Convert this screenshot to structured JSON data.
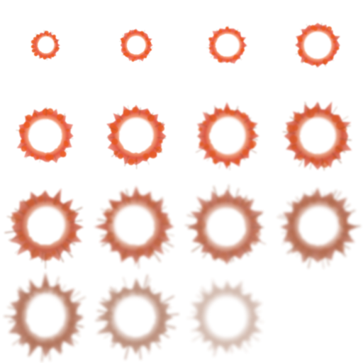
{
  "sprite_sheet": {
    "columns": 4,
    "rows": 4,
    "colors": {
      "fire_core": "#f05a1e",
      "fire_edge": "#e8503a",
      "smoke": "#8a4a2c",
      "background": "#ffffff"
    },
    "frames": [
      {
        "index": 0,
        "ring_outer": 0.28,
        "ring_inner": 0.17,
        "spike": 0.03,
        "fire": 1.0,
        "smoke": 0.0,
        "opacity": 1.0
      },
      {
        "index": 1,
        "ring_outer": 0.33,
        "ring_inner": 0.2,
        "spike": 0.04,
        "fire": 1.0,
        "smoke": 0.0,
        "opacity": 1.0
      },
      {
        "index": 2,
        "ring_outer": 0.38,
        "ring_inner": 0.25,
        "spike": 0.05,
        "fire": 1.0,
        "smoke": 0.05,
        "opacity": 1.0
      },
      {
        "index": 3,
        "ring_outer": 0.44,
        "ring_inner": 0.29,
        "spike": 0.06,
        "fire": 0.95,
        "smoke": 0.1,
        "opacity": 1.0
      },
      {
        "index": 4,
        "ring_outer": 0.55,
        "ring_inner": 0.36,
        "spike": 0.09,
        "fire": 0.95,
        "smoke": 0.15,
        "opacity": 1.0
      },
      {
        "index": 5,
        "ring_outer": 0.58,
        "ring_inner": 0.37,
        "spike": 0.1,
        "fire": 0.9,
        "smoke": 0.2,
        "opacity": 1.0
      },
      {
        "index": 6,
        "ring_outer": 0.6,
        "ring_inner": 0.38,
        "spike": 0.12,
        "fire": 0.85,
        "smoke": 0.3,
        "opacity": 1.0
      },
      {
        "index": 7,
        "ring_outer": 0.62,
        "ring_inner": 0.38,
        "spike": 0.14,
        "fire": 0.75,
        "smoke": 0.4,
        "opacity": 1.0
      },
      {
        "index": 8,
        "ring_outer": 0.68,
        "ring_inner": 0.4,
        "spike": 0.17,
        "fire": 0.6,
        "smoke": 0.55,
        "opacity": 0.95
      },
      {
        "index": 9,
        "ring_outer": 0.68,
        "ring_inner": 0.4,
        "spike": 0.18,
        "fire": 0.5,
        "smoke": 0.65,
        "opacity": 0.9
      },
      {
        "index": 10,
        "ring_outer": 0.68,
        "ring_inner": 0.41,
        "spike": 0.19,
        "fire": 0.4,
        "smoke": 0.75,
        "opacity": 0.85
      },
      {
        "index": 11,
        "ring_outer": 0.68,
        "ring_inner": 0.41,
        "spike": 0.2,
        "fire": 0.3,
        "smoke": 0.85,
        "opacity": 0.85
      },
      {
        "index": 12,
        "ring_outer": 0.68,
        "ring_inner": 0.42,
        "spike": 0.22,
        "fire": 0.2,
        "smoke": 0.9,
        "opacity": 0.8
      },
      {
        "index": 13,
        "ring_outer": 0.66,
        "ring_inner": 0.42,
        "spike": 0.22,
        "fire": 0.1,
        "smoke": 0.95,
        "opacity": 0.65
      },
      {
        "index": 14,
        "ring_outer": 0.64,
        "ring_inner": 0.43,
        "spike": 0.2,
        "fire": 0.0,
        "smoke": 1.0,
        "opacity": 0.4
      }
    ]
  }
}
